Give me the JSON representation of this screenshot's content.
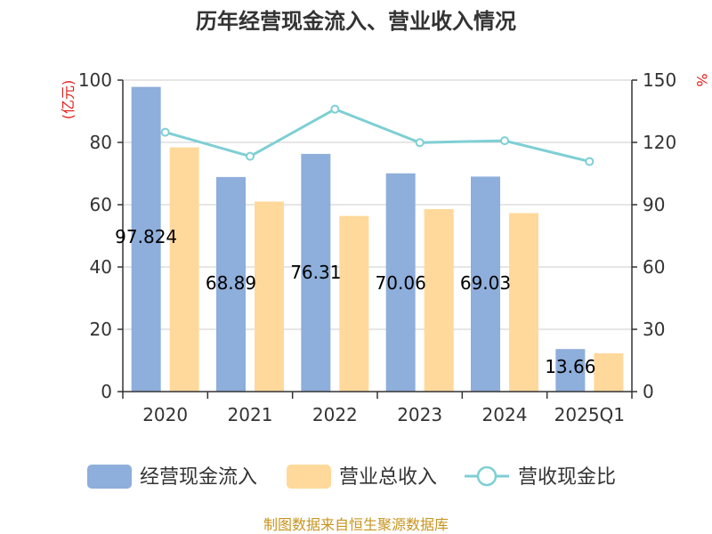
{
  "chart_data": {
    "type": "bar",
    "title": "历年经营现金流入、营业收入情况",
    "left_unit": "(亿元)",
    "right_unit": "%",
    "categories": [
      "2020",
      "2021",
      "2022",
      "2023",
      "2024",
      "2025Q1"
    ],
    "ylim_left": [
      0,
      100
    ],
    "yticks_left": [
      "0",
      "20",
      "40",
      "60",
      "80",
      "100"
    ],
    "ylim_right": [
      0,
      150
    ],
    "yticks_right": [
      "0",
      "30",
      "60",
      "90",
      "120",
      "150"
    ],
    "grid": true,
    "legend_position": "bottom",
    "series": [
      {
        "name": "经营现金流入",
        "type": "bar",
        "axis": "left",
        "color": "#8eaedb",
        "values": [
          97.82,
          68.89,
          76.31,
          70.06,
          69.03,
          13.66
        ],
        "labels": [
          "97.824",
          "68.89",
          "76.31",
          "70.06",
          "69.03",
          "13.66"
        ]
      },
      {
        "name": "营业总收入",
        "type": "bar",
        "axis": "left",
        "color": "#ffd99b",
        "values": [
          78.4,
          61.0,
          56.4,
          58.6,
          57.3,
          12.3
        ]
      },
      {
        "name": "营收现金比",
        "type": "line",
        "axis": "right",
        "color": "#7ecfd4",
        "values": [
          124.9,
          113.3,
          136.0,
          119.9,
          120.8,
          110.8
        ]
      }
    ]
  },
  "source": "制图数据来自恒生聚源数据库"
}
